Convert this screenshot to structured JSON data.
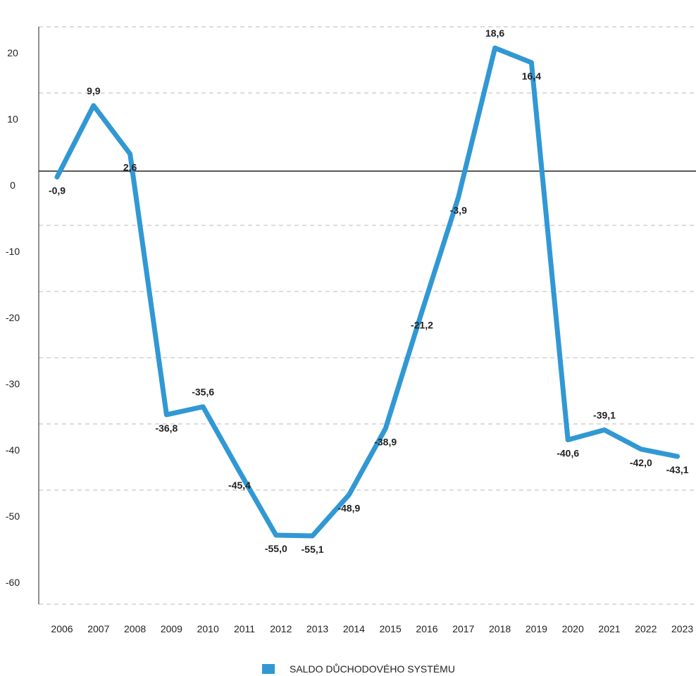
{
  "chart_data": {
    "type": "line",
    "categories": [
      "2006",
      "2007",
      "2008",
      "2009",
      "2010",
      "2011",
      "2012",
      "2013",
      "2014",
      "2015",
      "2016",
      "2017",
      "2018",
      "2019",
      "2020",
      "2021",
      "2022",
      "2023"
    ],
    "series": [
      {
        "name": "SALDO DŮCHODOVÉHO SYSTÉMU",
        "values": [
          -0.9,
          9.9,
          2.6,
          -36.8,
          -35.6,
          -45.4,
          -55.0,
          -55.1,
          -48.9,
          -38.9,
          -21.2,
          -3.9,
          18.6,
          16.4,
          -40.6,
          -39.1,
          -42.0,
          -43.1
        ],
        "labels": [
          "-0,9",
          "9,9",
          "2,6",
          "-36,8",
          "-35,6",
          "-45,4",
          "-55,0",
          "-55,1",
          "-48,9",
          "-38,9",
          "-21,2",
          "-3,9",
          "18,6",
          "16,4",
          "-40,6",
          "-39,1",
          "-42,0",
          "-43,1"
        ],
        "color": "#3198d4"
      }
    ],
    "yticks": [
      "20",
      "10",
      "0",
      "-10",
      "-20",
      "-30",
      "-40",
      "-50",
      "-60"
    ],
    "ylim": [
      -60,
      20
    ],
    "grid": "horizontal-dashed",
    "legend_position": "bottom",
    "xlabel": "",
    "ylabel": "",
    "title": ""
  }
}
